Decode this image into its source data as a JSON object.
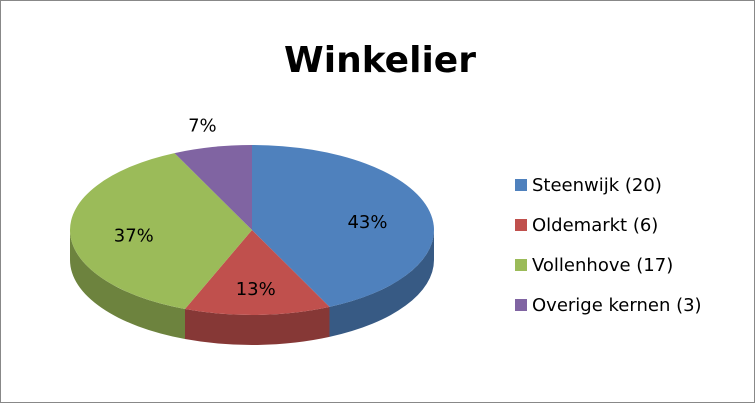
{
  "chart_data": {
    "type": "pie",
    "title": "Winkelier",
    "categories": [
      "Steenwijk (20)",
      "Oldemarkt (6)",
      "Vollenhove (17)",
      "Overige kernen (3)"
    ],
    "values": [
      43,
      13,
      37,
      7
    ],
    "value_labels": [
      "43%",
      "13%",
      "37%",
      "7%"
    ],
    "colors": [
      "#4f81bd",
      "#c0504d",
      "#9bbb59",
      "#8064a2"
    ],
    "legend": "right"
  }
}
